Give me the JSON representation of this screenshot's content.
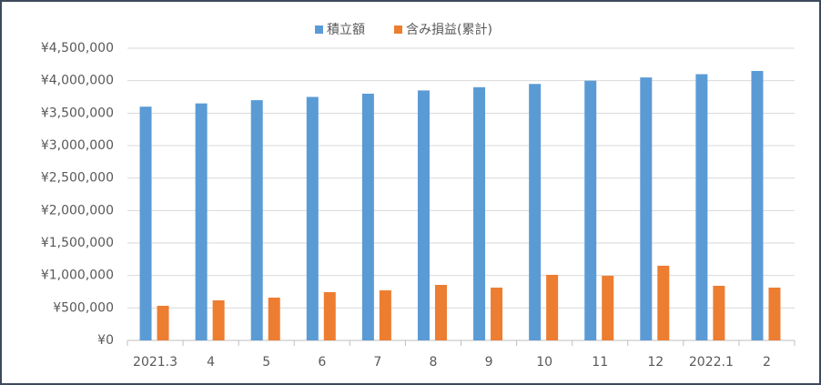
{
  "chart_data": {
    "type": "bar",
    "categories": [
      "2021.3",
      "4",
      "5",
      "6",
      "7",
      "8",
      "9",
      "10",
      "11",
      "12",
      "2022.1",
      "2"
    ],
    "series": [
      {
        "name": "積立額",
        "color": "#5b9bd5",
        "values": [
          3600000,
          3650000,
          3700000,
          3750000,
          3800000,
          3850000,
          3900000,
          3950000,
          4000000,
          4050000,
          4100000,
          4150000
        ]
      },
      {
        "name": "含み損益(累計)",
        "color": "#ed7d31",
        "values": [
          533000,
          617000,
          659000,
          743000,
          771000,
          855000,
          813000,
          1010000,
          995000,
          1150000,
          841000,
          813000
        ]
      }
    ],
    "ylim": [
      0,
      4500000
    ],
    "yticks": [
      {
        "value": 0,
        "label": "¥0"
      },
      {
        "value": 500000,
        "label": "¥500,000"
      },
      {
        "value": 1000000,
        "label": "¥1,000,000"
      },
      {
        "value": 1500000,
        "label": "¥1,500,000"
      },
      {
        "value": 2000000,
        "label": "¥2,000,000"
      },
      {
        "value": 2500000,
        "label": "¥2,500,000"
      },
      {
        "value": 3000000,
        "label": "¥3,000,000"
      },
      {
        "value": 3500000,
        "label": "¥3,500,000"
      },
      {
        "value": 4000000,
        "label": "¥4,000,000"
      },
      {
        "value": 4500000,
        "label": "¥4,500,000"
      }
    ],
    "grid": true,
    "legend": "top"
  }
}
